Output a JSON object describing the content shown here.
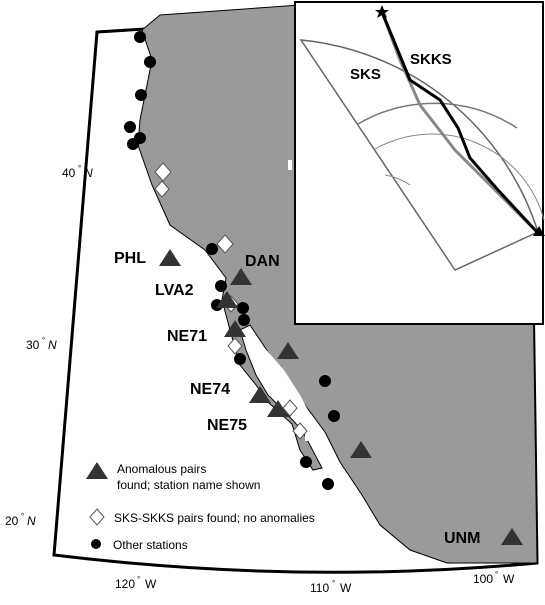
{
  "map": {
    "lat_labels": [
      {
        "deg": "40",
        "unit": "N"
      },
      {
        "deg": "30",
        "unit": "N"
      },
      {
        "deg": "20",
        "unit": "N"
      }
    ],
    "lon_labels": [
      {
        "deg": "120",
        "unit": "W"
      },
      {
        "deg": "110",
        "unit": "W"
      },
      {
        "deg": "100",
        "unit": "W"
      }
    ],
    "stations": [
      "PHL",
      "DAN",
      "LVA2",
      "NE71",
      "NE74",
      "NE75",
      "UNM"
    ]
  },
  "legend": {
    "anomalous_line1": "Anomalous pairs",
    "anomalous_line2": "found; station name shown",
    "no_anomaly": "SKS-SKKS pairs found; no anomalies",
    "other": "Other stations"
  },
  "inset": {
    "sks_label": "SKS",
    "skks_label": "SKKS"
  },
  "colors": {
    "land": "#9a9a9a",
    "ocean": "#ffffff",
    "marker": "#333333",
    "dot": "#000000"
  }
}
